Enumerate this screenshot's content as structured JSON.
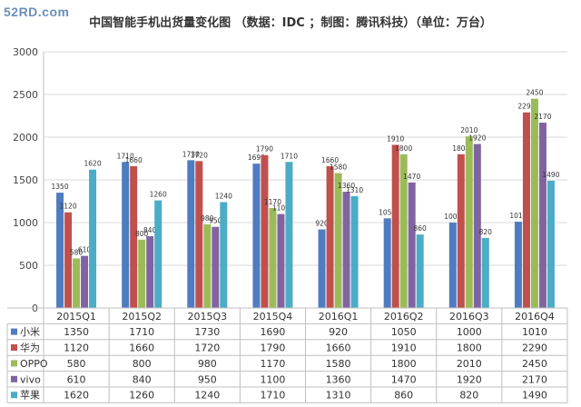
{
  "watermark": "52RD.com",
  "chart_data": {
    "type": "bar",
    "title": "中国智能手机出货量变化图 （数据：IDC ；制图：腾讯科技）（单位：万台）",
    "xlabel": "",
    "ylabel": "",
    "ylim": [
      0,
      3000
    ],
    "yticks": [
      0,
      500,
      1000,
      1500,
      2000,
      2500,
      3000
    ],
    "grid": true,
    "legend": "data-table",
    "categories": [
      "2015Q1",
      "2015Q2",
      "2015Q3",
      "2015Q4",
      "2016Q1",
      "2016Q2",
      "2016Q3",
      "2016Q4"
    ],
    "series": [
      {
        "name": "小米",
        "color": "#4f7cc0",
        "values": [
          1350,
          1710,
          1730,
          1690,
          920,
          1050,
          1000,
          1010
        ]
      },
      {
        "name": "华为",
        "color": "#c0504d",
        "values": [
          1120,
          1660,
          1720,
          1790,
          1660,
          1910,
          1800,
          2290
        ]
      },
      {
        "name": "OPPO",
        "color": "#9bbb59",
        "values": [
          580,
          800,
          980,
          1170,
          1580,
          1800,
          2010,
          2450
        ]
      },
      {
        "name": "vivo",
        "color": "#8064a2",
        "values": [
          610,
          840,
          950,
          1100,
          1360,
          1470,
          1920,
          2170
        ]
      },
      {
        "name": "苹果",
        "color": "#4bacc6",
        "values": [
          1620,
          1260,
          1240,
          1710,
          1310,
          860,
          820,
          1490
        ]
      }
    ]
  }
}
